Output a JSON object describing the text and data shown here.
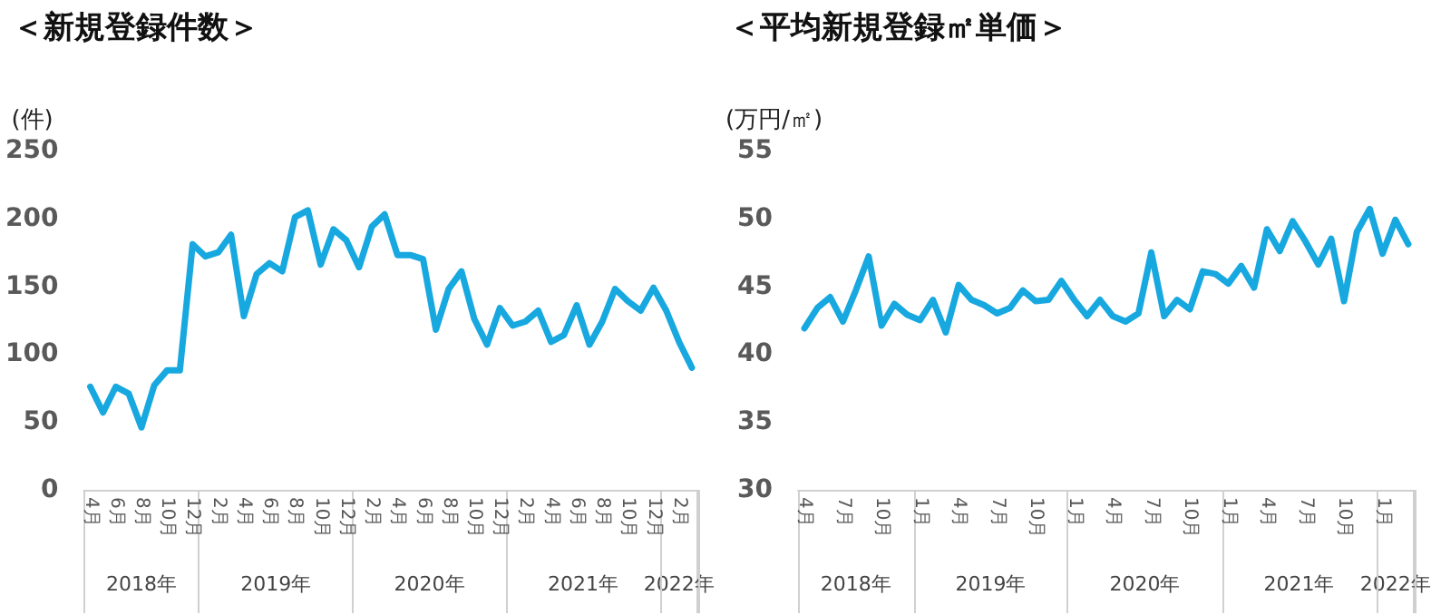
{
  "chart_data": [
    {
      "type": "line",
      "title": "＜新規登録件数＞",
      "ylabel": "(件)",
      "grid": false,
      "marker": "none",
      "line_style": "solid",
      "xlim": [
        "2018-04",
        "2022-03"
      ],
      "x": [
        "2018-04",
        "2018-05",
        "2018-06",
        "2018-07",
        "2018-08",
        "2018-09",
        "2018-10",
        "2018-11",
        "2018-12",
        "2019-01",
        "2019-02",
        "2019-03",
        "2019-04",
        "2019-05",
        "2019-06",
        "2019-07",
        "2019-08",
        "2019-09",
        "2019-10",
        "2019-11",
        "2019-12",
        "2020-01",
        "2020-02",
        "2020-03",
        "2020-04",
        "2020-05",
        "2020-06",
        "2020-07",
        "2020-08",
        "2020-09",
        "2020-10",
        "2020-11",
        "2020-12",
        "2021-01",
        "2021-02",
        "2021-03",
        "2021-04",
        "2021-05",
        "2021-06",
        "2021-07",
        "2021-08",
        "2021-09",
        "2021-10",
        "2021-11",
        "2021-12",
        "2022-01",
        "2022-02",
        "2022-03"
      ],
      "series": [
        {
          "color": "#17a8e0",
          "values": [
            76,
            57,
            76,
            71,
            46,
            77,
            88,
            88,
            181,
            172,
            175,
            188,
            128,
            159,
            167,
            161,
            201,
            206,
            166,
            192,
            184,
            164,
            194,
            203,
            173,
            173,
            170,
            118,
            148,
            161,
            126,
            107,
            134,
            121,
            124,
            132,
            109,
            114,
            136,
            107,
            124,
            148,
            139,
            132,
            149,
            132,
            109,
            90
          ]
        }
      ],
      "ylim": [
        0,
        250
      ],
      "yticks": [
        0,
        50,
        100,
        150,
        200,
        250
      ],
      "xticks": [
        {
          "value": "2018-04",
          "label": "4月"
        },
        {
          "value": "2018-06",
          "label": "6月"
        },
        {
          "value": "2018-08",
          "label": "8月"
        },
        {
          "value": "2018-10",
          "label": "10月"
        },
        {
          "value": "2018-12",
          "label": "12月"
        },
        {
          "value": "2019-02",
          "label": "2月"
        },
        {
          "value": "2019-04",
          "label": "4月"
        },
        {
          "value": "2019-06",
          "label": "6月"
        },
        {
          "value": "2019-08",
          "label": "8月"
        },
        {
          "value": "2019-10",
          "label": "10月"
        },
        {
          "value": "2019-12",
          "label": "12月"
        },
        {
          "value": "2020-02",
          "label": "2月"
        },
        {
          "value": "2020-04",
          "label": "4月"
        },
        {
          "value": "2020-06",
          "label": "6月"
        },
        {
          "value": "2020-08",
          "label": "8月"
        },
        {
          "value": "2020-10",
          "label": "10月"
        },
        {
          "value": "2020-12",
          "label": "12月"
        },
        {
          "value": "2021-02",
          "label": "2月"
        },
        {
          "value": "2021-04",
          "label": "4月"
        },
        {
          "value": "2021-06",
          "label": "6月"
        },
        {
          "value": "2021-08",
          "label": "8月"
        },
        {
          "value": "2021-10",
          "label": "10月"
        },
        {
          "value": "2021-12",
          "label": "12月"
        },
        {
          "value": "2022-02",
          "label": "2月"
        }
      ],
      "annotations": [
        "2018年",
        "2019年",
        "2020年",
        "2021年",
        "2022年"
      ]
    },
    {
      "type": "line",
      "title": "＜平均新規登録㎡単価＞",
      "ylabel": "(万円/㎡)",
      "grid": false,
      "marker": "none",
      "line_style": "solid",
      "xlim": [
        "2018-04",
        "2022-03"
      ],
      "x": [
        "2018-04",
        "2018-05",
        "2018-06",
        "2018-07",
        "2018-08",
        "2018-09",
        "2018-10",
        "2018-11",
        "2018-12",
        "2019-01",
        "2019-02",
        "2019-03",
        "2019-04",
        "2019-05",
        "2019-06",
        "2019-07",
        "2019-08",
        "2019-09",
        "2019-10",
        "2019-11",
        "2019-12",
        "2020-01",
        "2020-02",
        "2020-03",
        "2020-04",
        "2020-05",
        "2020-06",
        "2020-07",
        "2020-08",
        "2020-09",
        "2020-10",
        "2020-11",
        "2020-12",
        "2021-01",
        "2021-02",
        "2021-03",
        "2021-04",
        "2021-05",
        "2021-06",
        "2021-07",
        "2021-08",
        "2021-09",
        "2021-10",
        "2021-11",
        "2021-12",
        "2022-01",
        "2022-02",
        "2022-03"
      ],
      "series": [
        {
          "color": "#17a8e0",
          "values": [
            41.9,
            43.4,
            44.2,
            42.4,
            44.7,
            47.2,
            42.1,
            43.7,
            42.9,
            42.5,
            44.0,
            41.6,
            45.1,
            44.0,
            43.6,
            43.0,
            43.4,
            44.7,
            43.9,
            44.0,
            45.4,
            44.0,
            42.8,
            44.0,
            42.8,
            42.4,
            43.0,
            47.5,
            42.8,
            44.0,
            43.3,
            46.1,
            45.9,
            45.2,
            46.5,
            44.9,
            49.2,
            47.6,
            49.8,
            48.3,
            46.6,
            48.5,
            43.9,
            49.0,
            50.7,
            47.4,
            49.9,
            48.1
          ]
        }
      ],
      "ylim": [
        30,
        55
      ],
      "yticks": [
        30,
        35,
        40,
        45,
        50,
        55
      ],
      "xticks": [
        {
          "value": "2018-04",
          "label": "4月"
        },
        {
          "value": "2018-07",
          "label": "7月"
        },
        {
          "value": "2018-10",
          "label": "10月"
        },
        {
          "value": "2019-01",
          "label": "1月"
        },
        {
          "value": "2019-04",
          "label": "4月"
        },
        {
          "value": "2019-07",
          "label": "7月"
        },
        {
          "value": "2019-10",
          "label": "10月"
        },
        {
          "value": "2020-01",
          "label": "1月"
        },
        {
          "value": "2020-04",
          "label": "4月"
        },
        {
          "value": "2020-07",
          "label": "7月"
        },
        {
          "value": "2020-10",
          "label": "10月"
        },
        {
          "value": "2021-01",
          "label": "1月"
        },
        {
          "value": "2021-04",
          "label": "4月"
        },
        {
          "value": "2021-07",
          "label": "7月"
        },
        {
          "value": "2021-10",
          "label": "10月"
        },
        {
          "value": "2022-01",
          "label": "1月"
        }
      ],
      "annotations": [
        "2018年",
        "2019年",
        "2020年",
        "2021年",
        "2022年"
      ]
    }
  ]
}
